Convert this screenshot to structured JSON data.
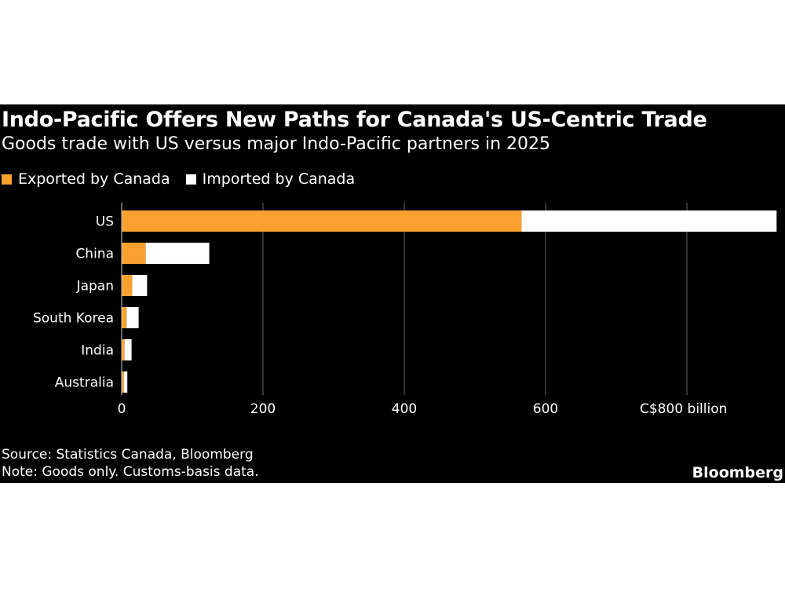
{
  "title": "Indo-Pacific Offers New Paths for Canada's US-Centric Trade",
  "subtitle": "Goods trade with US versus major Indo-Pacific partners in 2025",
  "source": "Source: Statistics Canada, Bloomberg",
  "note": "Note: Goods only. Customs-basis data.",
  "brand": "Bloomberg",
  "chart_data": {
    "type": "bar",
    "orientation": "horizontal",
    "stacked": true,
    "categories": [
      "US",
      "China",
      "Japan",
      "South Korea",
      "India",
      "Australia"
    ],
    "series": [
      {
        "name": "Exported by Canada",
        "color": "#F9A12E",
        "values": [
          566,
          34,
          15,
          7,
          4,
          3
        ]
      },
      {
        "name": "Imported by Canada",
        "color": "#FFFFFF",
        "values": [
          361,
          90,
          21,
          17,
          10,
          5
        ]
      }
    ],
    "xlim": [
      0,
      930
    ],
    "xticks": [
      0,
      200,
      400,
      600,
      800
    ],
    "xtick_labels": [
      "0",
      "200",
      "400",
      "600",
      "C$800 billion"
    ],
    "grid": true,
    "legend_placement": "top-left"
  }
}
